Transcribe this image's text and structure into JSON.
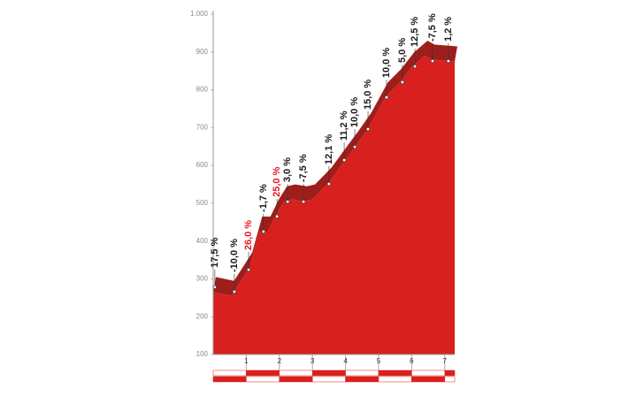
{
  "chart_data": {
    "type": "area",
    "x": [
      0,
      0.55,
      1.1,
      1.4,
      1.65,
      1.9,
      2.15,
      2.4,
      2.75,
      3.0,
      3.5,
      4.0,
      4.3,
      4.7,
      5.2,
      5.6,
      6.0,
      6.4,
      6.6,
      7.3
    ],
    "values": [
      265,
      255,
      330,
      425,
      425,
      470,
      505,
      510,
      505,
      510,
      555,
      615,
      650,
      700,
      780,
      815,
      860,
      890,
      880,
      875
    ],
    "color": "#d8201f",
    "band_color": "#9e1e1c",
    "points": [
      {
        "x": 0.05,
        "y": 278,
        "label": "17,5 %",
        "color": "#1a1a1a"
      },
      {
        "x": 0.64,
        "y": 266,
        "label": "-10,0 %",
        "color": "#1a1a1a"
      },
      {
        "x": 1.07,
        "y": 324,
        "label": "26,0 %",
        "color": "#e31b23"
      },
      {
        "x": 1.52,
        "y": 425,
        "label": "-1,7 %",
        "color": "#1a1a1a"
      },
      {
        "x": 1.93,
        "y": 465,
        "label": "25,0 %",
        "color": "#e31b23"
      },
      {
        "x": 2.25,
        "y": 504,
        "label": "3,0 %",
        "color": "#1a1a1a"
      },
      {
        "x": 2.73,
        "y": 504,
        "label": "-7,5 %",
        "color": "#1a1a1a"
      },
      {
        "x": 3.5,
        "y": 551,
        "label": "12,1 %",
        "color": "#1a1a1a"
      },
      {
        "x": 3.96,
        "y": 614,
        "label": "11,2 %",
        "color": "#1a1a1a"
      },
      {
        "x": 4.28,
        "y": 649,
        "label": "10,0 %",
        "color": "#1a1a1a"
      },
      {
        "x": 4.68,
        "y": 696,
        "label": "15,0 %",
        "color": "#1a1a1a"
      },
      {
        "x": 5.24,
        "y": 780,
        "label": "10,0 %",
        "color": "#1a1a1a"
      },
      {
        "x": 5.72,
        "y": 820,
        "label": "5,0 %",
        "color": "#1a1a1a"
      },
      {
        "x": 6.1,
        "y": 862,
        "label": "12,5 %",
        "color": "#1a1a1a"
      },
      {
        "x": 6.63,
        "y": 876,
        "label": "-7,5 %",
        "color": "#1a1a1a"
      },
      {
        "x": 7.11,
        "y": 876,
        "label": "1,2 %",
        "color": "#1a1a1a"
      }
    ],
    "xlim": [
      0,
      7.3
    ],
    "xticks": [
      1,
      2,
      3,
      4,
      5,
      6,
      7
    ],
    "ylim": [
      100,
      1000
    ],
    "yticks": [
      100,
      200,
      300,
      400,
      500,
      600,
      700,
      800,
      900,
      {
        "value": 1000,
        "label": "1.000"
      }
    ]
  }
}
